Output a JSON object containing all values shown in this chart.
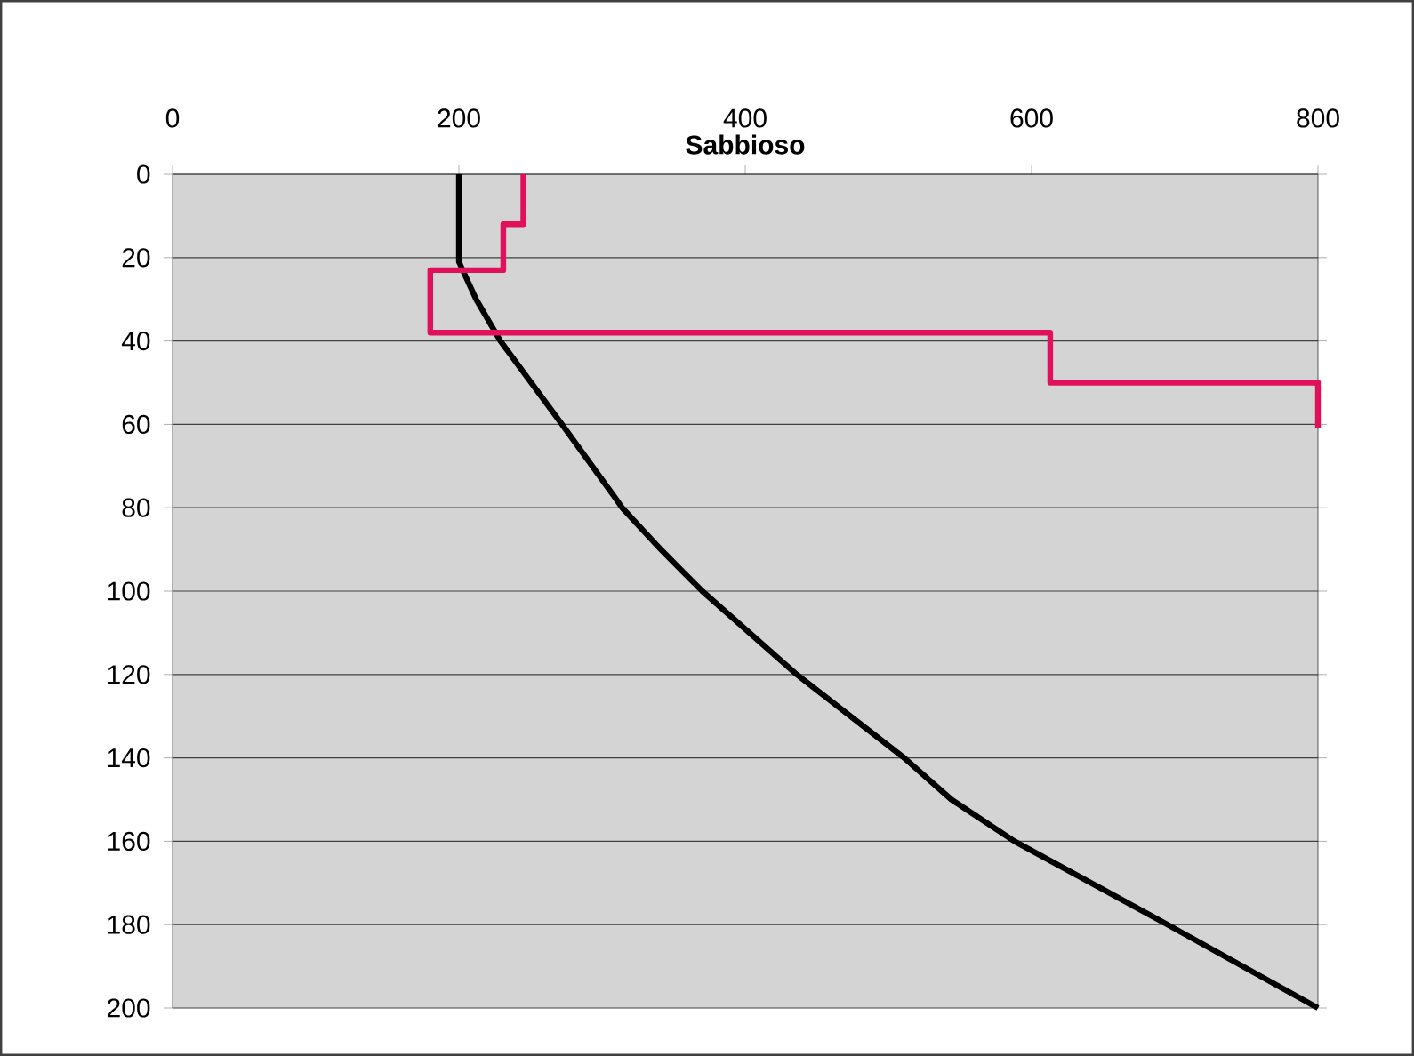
{
  "chart_data": {
    "type": "line",
    "title": "Sabbioso",
    "xlim": [
      0,
      800
    ],
    "xticks": [
      0,
      200,
      400,
      600,
      800
    ],
    "ylim": [
      200,
      0
    ],
    "yticks": [
      0,
      20,
      40,
      60,
      80,
      100,
      120,
      140,
      160,
      180,
      200
    ],
    "grid": "y",
    "marker": "none",
    "line_style": "solid",
    "series": [
      {
        "color": "#000000",
        "x": [
          200,
          200,
          212,
          229,
          272,
          310,
          314,
          341,
          370,
          436,
          511,
          544,
          588,
          695,
          800
        ],
        "values": [
          0,
          21,
          30,
          40,
          60,
          78,
          80,
          90,
          100,
          120,
          140,
          150,
          160,
          180,
          200
        ]
      },
      {
        "color": "#e0105a",
        "x": [
          245,
          245,
          231,
          231,
          180,
          180,
          613,
          613,
          800,
          800
        ],
        "values": [
          0,
          12,
          12,
          23,
          23,
          38,
          38,
          50,
          50,
          61
        ]
      }
    ]
  }
}
